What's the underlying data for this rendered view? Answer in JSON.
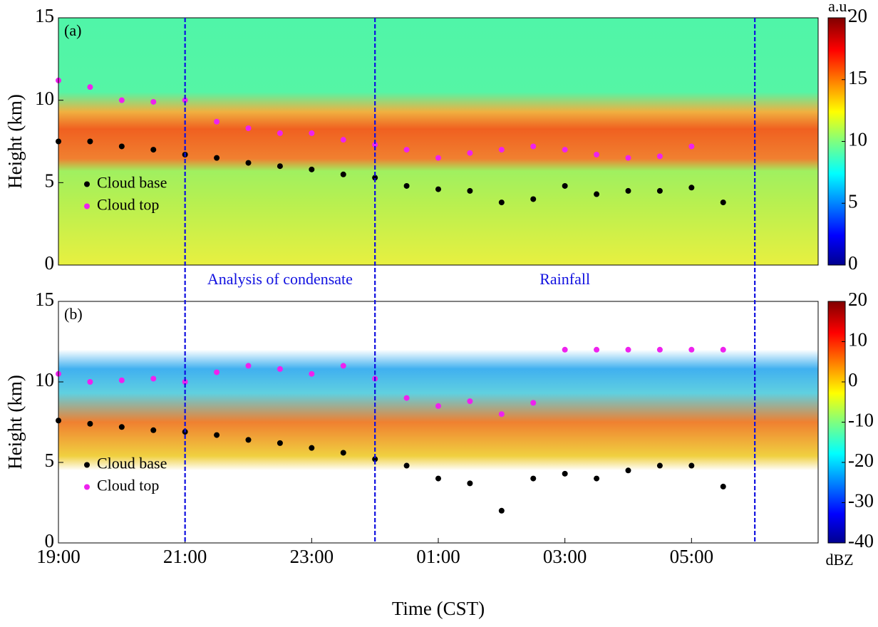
{
  "chart_data": [
    {
      "type": "scatter",
      "panel_label": "(a)",
      "ylabel": "Height (km)",
      "xlim": [
        19,
        31
      ],
      "ylim": [
        0,
        15
      ],
      "yticks": [
        0,
        5,
        10,
        15
      ],
      "vlines": [
        21,
        24,
        30
      ],
      "annotations": [
        "Analysis of condensate",
        "Rainfall"
      ],
      "legend": "center left",
      "x": [
        19,
        19.5,
        20,
        20.5,
        21,
        21.5,
        22,
        22.5,
        23,
        23.5,
        24,
        24.5,
        25,
        25.5,
        26,
        26.5,
        27,
        27.5,
        28,
        28.5,
        29,
        29.5
      ],
      "series": [
        {
          "name": "Cloud base",
          "color": "#000000",
          "values": [
            7.5,
            7.5,
            7.2,
            7.0,
            6.7,
            6.5,
            6.2,
            6.0,
            5.8,
            5.5,
            5.3,
            4.8,
            4.6,
            4.5,
            3.8,
            4.0,
            4.8,
            4.3,
            4.5,
            4.5,
            4.7,
            3.8
          ]
        },
        {
          "name": "Cloud top",
          "color": "#ee22ee",
          "values": [
            11.2,
            10.8,
            10.0,
            9.9,
            10.0,
            8.7,
            8.3,
            8.0,
            8.0,
            7.6,
            7.3,
            7.0,
            6.5,
            6.8,
            7.0,
            7.2,
            7.0,
            6.7,
            6.5,
            6.6,
            7.2,
            null
          ]
        }
      ],
      "colorbar": {
        "label": "a.u.",
        "lim": [
          0,
          20
        ],
        "ticks": [
          0,
          5,
          10,
          15,
          20
        ]
      }
    },
    {
      "type": "scatter",
      "panel_label": "(b)",
      "ylabel": "Height (km)",
      "xlabel": "Time (CST)",
      "xlim": [
        19,
        31
      ],
      "ylim": [
        0,
        15
      ],
      "yticks": [
        0,
        5,
        10,
        15
      ],
      "xticks": [
        {
          "value": 19,
          "label": "19:00"
        },
        {
          "value": 21,
          "label": "21:00"
        },
        {
          "value": 23,
          "label": "23:00"
        },
        {
          "value": 25,
          "label": "01:00"
        },
        {
          "value": 27,
          "label": "03:00"
        },
        {
          "value": 29,
          "label": "05:00"
        }
      ],
      "legend": "center left",
      "x": [
        19,
        19.5,
        20,
        20.5,
        21,
        21.5,
        22,
        22.5,
        23,
        23.5,
        24,
        24.5,
        25,
        25.5,
        26,
        26.5,
        27,
        27.5,
        28,
        28.5,
        29,
        29.5
      ],
      "series": [
        {
          "name": "Cloud base",
          "color": "#000000",
          "values": [
            7.6,
            7.4,
            7.2,
            7.0,
            6.9,
            6.7,
            6.4,
            6.2,
            5.9,
            5.6,
            5.2,
            4.8,
            4.0,
            3.7,
            2.0,
            4.0,
            4.3,
            4.0,
            4.5,
            4.8,
            4.8,
            3.5
          ]
        },
        {
          "name": "Cloud top",
          "color": "#ee22ee",
          "values": [
            10.5,
            10.0,
            10.1,
            10.2,
            10.0,
            10.6,
            11.0,
            10.8,
            10.5,
            11.0,
            10.2,
            9.0,
            8.5,
            8.8,
            8.0,
            8.7,
            12.0,
            12.0,
            12.0,
            12.0,
            12.0,
            12.0
          ]
        }
      ],
      "colorbar": {
        "label": "dBZ",
        "lim": [
          -40,
          20
        ],
        "ticks": [
          -40,
          -30,
          -20,
          -10,
          0,
          10,
          20
        ]
      }
    }
  ]
}
